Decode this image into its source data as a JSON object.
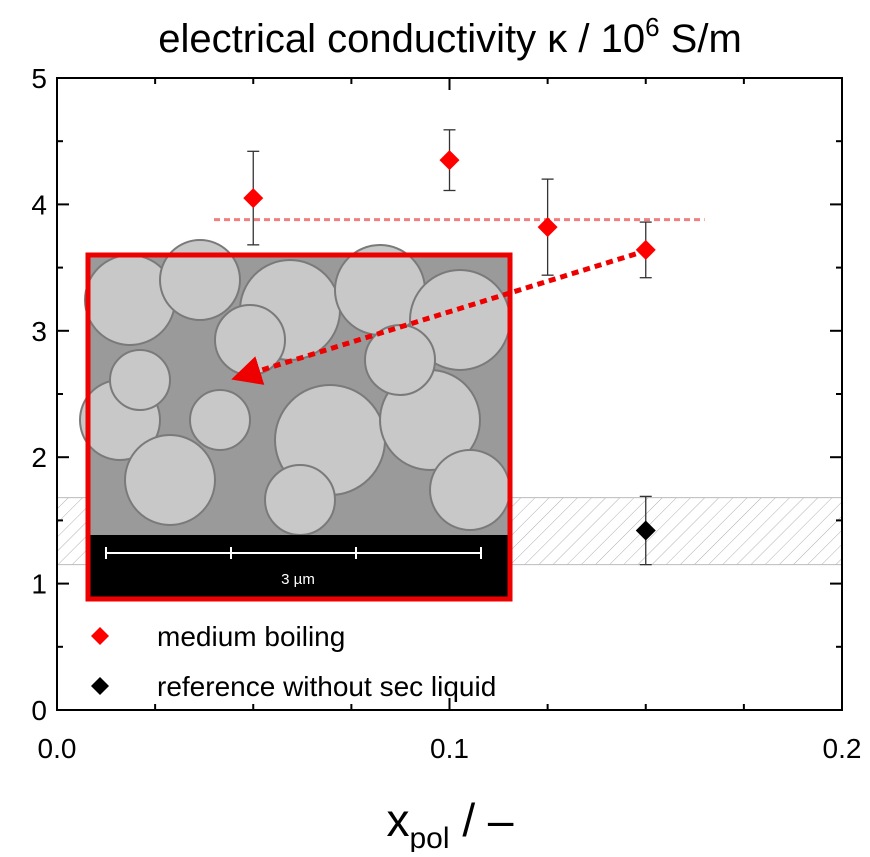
{
  "chart_data": {
    "type": "scatter",
    "title": "electrical conductivity κ / 10",
    "title_superscript": "6",
    "title_suffix": " S/m",
    "xlabel": "x",
    "xlabel_subscript": "pol",
    "xlabel_suffix": " / –",
    "xlim": [
      0,
      0.2
    ],
    "xticks": [
      {
        "value": 0,
        "label": "0.0"
      },
      0.1,
      0.2
    ],
    "ylim": [
      0,
      5
    ],
    "yticks": [
      0,
      1,
      2,
      3,
      4,
      5
    ],
    "series": [
      {
        "name": "medium boiling",
        "color": "#ff0000",
        "marker": "diamond",
        "x": [
          0.05,
          0.1,
          0.125,
          0.15
        ],
        "values": [
          4.05,
          4.35,
          3.82,
          3.64
        ],
        "errors": [
          0.37,
          0.24,
          0.38,
          0.22
        ]
      },
      {
        "name": "reference without sec liquid",
        "color": "#000000",
        "marker": "diamond",
        "x": [
          0.15
        ],
        "values": [
          1.42
        ],
        "errors": [
          0.27
        ]
      }
    ],
    "reference_band": [
      1.15,
      1.68
    ],
    "mean_line": {
      "y": 3.88,
      "x": [
        0.04,
        0.165
      ],
      "color": "#f08080"
    },
    "inset_scale_label": "3 µm",
    "legend": "lower left"
  }
}
